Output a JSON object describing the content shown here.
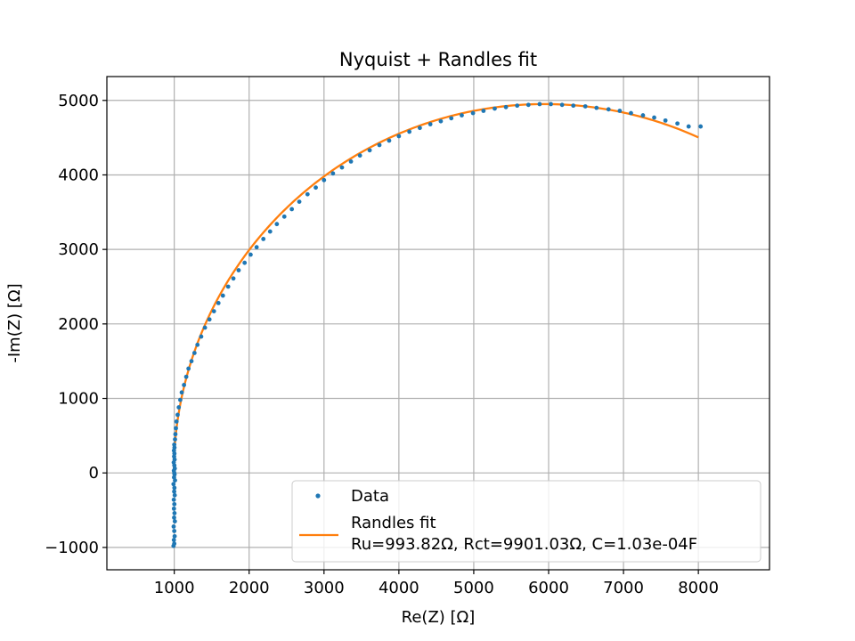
{
  "chart_data": {
    "type": "scatter",
    "title": "Nyquist + Randles fit",
    "xlabel": "Re(Z) [Ω]",
    "ylabel": "-Im(Z) [Ω]",
    "xlim": [
      100,
      8950
    ],
    "ylim": [
      -1300,
      5320
    ],
    "xticks": [
      1000,
      2000,
      3000,
      4000,
      5000,
      6000,
      7000,
      8000
    ],
    "xtick_labels": [
      "1000",
      "2000",
      "3000",
      "4000",
      "5000",
      "6000",
      "7000",
      "8000"
    ],
    "yticks": [
      -1000,
      0,
      1000,
      2000,
      3000,
      4000,
      5000
    ],
    "ytick_labels": [
      "−1000",
      "0",
      "1000",
      "2000",
      "3000",
      "4000",
      "5000"
    ],
    "grid": true,
    "legend_position": "lower-right",
    "colors": {
      "data": "#1f77b4",
      "fit": "#ff7f0e",
      "grid": "#b0b0b0",
      "frame": "#000000"
    },
    "series": [
      {
        "name": "Data",
        "kind": "scatter",
        "x": [
          990,
          1000,
          995,
          1005,
          1000,
          992,
          1008,
          998,
          1003,
          996,
          1001,
          994,
          1006,
          999,
          1002,
          990,
          1010,
          997,
          1004,
          1000,
          995,
          1007,
          1001,
          993,
          1005,
          998,
          1002,
          996,
          1003,
          1000,
          1010,
          1015,
          1022,
          1030,
          1045,
          1060,
          1080,
          1100,
          1130,
          1160,
          1190,
          1230,
          1270,
          1310,
          1360,
          1410,
          1470,
          1530,
          1590,
          1650,
          1720,
          1790,
          1860,
          1940,
          2020,
          2100,
          2190,
          2280,
          2370,
          2470,
          2570,
          2670,
          2780,
          2890,
          3000,
          3120,
          3240,
          3360,
          3480,
          3610,
          3740,
          3870,
          4000,
          4140,
          4280,
          4420,
          4560,
          4700,
          4840,
          4990,
          5130,
          5280,
          5430,
          5580,
          5730,
          5880,
          6030,
          6180,
          6330,
          6490,
          6640,
          6800,
          6950,
          7100,
          7260,
          7410,
          7560,
          7720,
          7870,
          8030
        ],
        "y": [
          -980,
          -950,
          -900,
          -850,
          -780,
          -720,
          -650,
          -600,
          -540,
          -480,
          -420,
          -360,
          -300,
          -250,
          -200,
          -150,
          -100,
          -60,
          -20,
          0,
          30,
          60,
          100,
          140,
          180,
          220,
          260,
          300,
          340,
          380,
          450,
          520,
          600,
          690,
          780,
          880,
          980,
          1080,
          1180,
          1290,
          1400,
          1500,
          1610,
          1720,
          1830,
          1950,
          2060,
          2170,
          2280,
          2380,
          2500,
          2610,
          2720,
          2820,
          2930,
          3030,
          3140,
          3240,
          3340,
          3440,
          3540,
          3640,
          3740,
          3830,
          3930,
          4020,
          4100,
          4180,
          4260,
          4330,
          4400,
          4460,
          4520,
          4580,
          4630,
          4680,
          4720,
          4760,
          4800,
          4830,
          4860,
          4890,
          4910,
          4930,
          4940,
          4950,
          4950,
          4940,
          4930,
          4920,
          4900,
          4880,
          4860,
          4830,
          4800,
          4770,
          4730,
          4690,
          4650,
          4650
        ]
      },
      {
        "name": "Randles fit\nRu=993.82Ω, Rct=9901.03Ω, C=1.03e-04F",
        "kind": "line",
        "Ru": 993.82,
        "Rct": 9901.03,
        "C": 0.000103,
        "x_range": [
          993.82,
          8000
        ]
      }
    ],
    "legend": {
      "data_label": "Data",
      "fit_label_line1": "Randles fit",
      "fit_label_line2": "Ru=993.82Ω, Rct=9901.03Ω, C=1.03e-04F"
    }
  }
}
